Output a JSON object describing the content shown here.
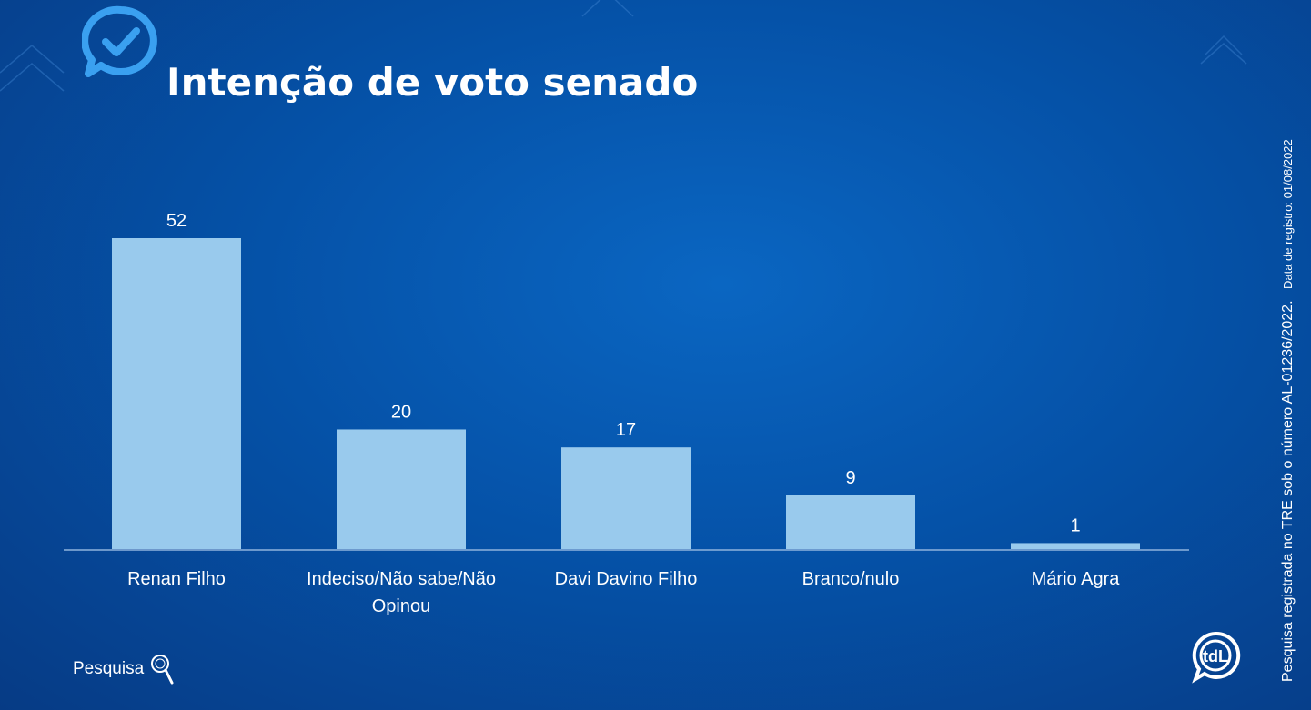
{
  "title": "Intenção de voto senado",
  "side_note": {
    "main": "Pesquisa  registrada  no TRE sob o número AL-01236/2022.",
    "date": "Data de registro: 01/08/2022"
  },
  "brand": {
    "pesquisa_label": "Pesquisa",
    "tdl_label": "tdL"
  },
  "colors": {
    "bar": "#99caed",
    "axis": "#8fb3dd"
  },
  "chart_data": {
    "type": "bar",
    "title": "Intenção de voto senado",
    "categories": [
      [
        "Renan Filho"
      ],
      [
        "Indeciso/Não sabe/Não",
        "Opinou"
      ],
      [
        "Davi Davino Filho"
      ],
      [
        "Branco/nulo"
      ],
      [
        "Mário Agra"
      ]
    ],
    "values": [
      52,
      20,
      17,
      9,
      1
    ],
    "ylim": [
      0,
      52
    ],
    "grid": false,
    "data_labels": true
  }
}
